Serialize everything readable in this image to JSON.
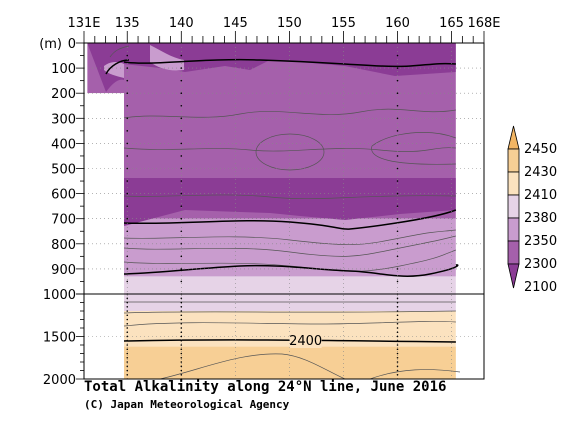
{
  "chart_data": {
    "type": "heatmap",
    "title": "Total Alkalinity along 24°N line, June 2016",
    "credit": "(C) Japan Meteorological Agency",
    "ylabel": "(m)",
    "x_ticks": [
      "131E",
      "135",
      "140",
      "145",
      "150",
      "155",
      "160",
      "165",
      "168E"
    ],
    "x_tick_values": [
      131,
      135,
      140,
      145,
      150,
      155,
      160,
      165,
      168
    ],
    "xlim": [
      131,
      168
    ],
    "y_ticks_upper": [
      0,
      100,
      200,
      300,
      400,
      500,
      600,
      700,
      800,
      900,
      1000
    ],
    "y_ticks_lower": [
      1000,
      1500,
      2000
    ],
    "ylim": [
      2000,
      0
    ],
    "y_axis_break_depth": 1000,
    "colorbar": {
      "levels": [
        "2450",
        "2430",
        "2410",
        "2380",
        "2350",
        "2300",
        "2100"
      ],
      "band_colors": [
        "#f2b563",
        "#f7cf95",
        "#fbe2bf",
        "#e6d3e7",
        "#c99cce",
        "#a560ab",
        "#8b3c95"
      ]
    },
    "contour_labels": [
      {
        "value": "2400",
        "lon": 151.5,
        "depth": 1560
      }
    ],
    "sections": [
      {
        "lon_range": [
          131.3,
          134.7
        ],
        "depth_range": [
          0,
          200
        ]
      },
      {
        "lon_range": [
          134.7,
          165.4
        ],
        "depth_range": [
          0,
          2000
        ]
      }
    ],
    "layers": [
      {
        "label": "2100-2300",
        "depth_top_m": 0,
        "depth_bottom_m": 700,
        "color": "#a560ab"
      },
      {
        "label": "2300-2350",
        "depth_top_m": 700,
        "depth_bottom_m": 930,
        "color": "#c99cce"
      },
      {
        "label": "2350-2380",
        "depth_top_m": 930,
        "depth_bottom_m": 1200,
        "color": "#e6d3e7"
      },
      {
        "label": "2380-2410",
        "depth_top_m": 1200,
        "depth_bottom_m": 2000,
        "color": "#fbe2bf"
      },
      {
        "label": "2410-2430",
        "depth_top_m": 1620,
        "depth_bottom_m": 2000,
        "color": "#f7cf95"
      }
    ],
    "grid": true,
    "legend_position": "right"
  }
}
